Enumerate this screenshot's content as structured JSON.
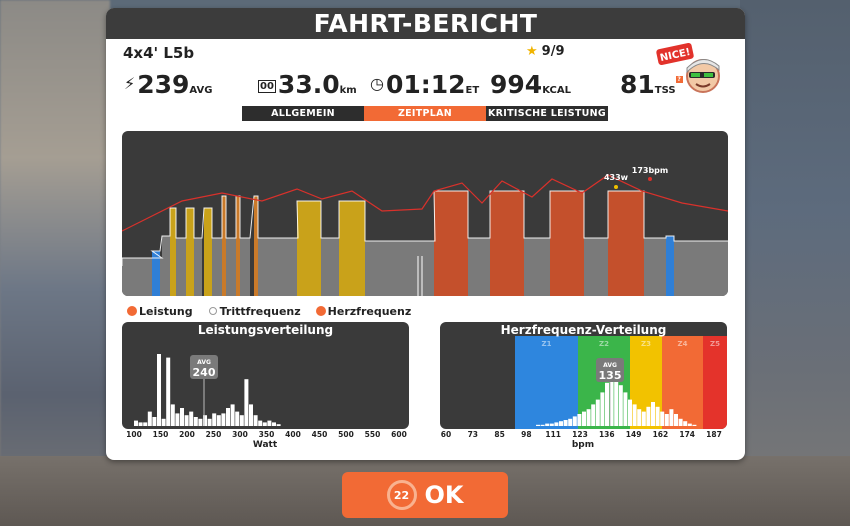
{
  "title": "FAHRT-BERICHT",
  "workout_name": "4x4' L5b",
  "stars": "9/9",
  "badge_text": "NICE!",
  "stats": {
    "power": {
      "value": "239",
      "unit": "AVG"
    },
    "distance": {
      "value": "33.0",
      "unit": "km"
    },
    "time": {
      "value": "01:12",
      "unit": "ET"
    },
    "energy": {
      "value": "994",
      "unit": "KCAL"
    },
    "tss": {
      "value": "81",
      "unit": "TSS"
    }
  },
  "tabs": [
    {
      "label": "ALLGEMEIN",
      "active": false
    },
    {
      "label": "ZEITPLAN",
      "active": true
    },
    {
      "label": "KRITISCHE LEISTUNG",
      "active": false
    }
  ],
  "timeline": {
    "peak_power_label": "433w",
    "peak_hr_label": "173bpm"
  },
  "legend": [
    {
      "label": "Leistung",
      "color": "#f26a35"
    },
    {
      "label": "Trittfrequenz",
      "color": "#ffffff"
    },
    {
      "label": "Herzfrequenz",
      "color": "#f26a35"
    }
  ],
  "power_hist": {
    "title": "Leistungsverteilung",
    "avg_label": "AVG",
    "avg_value": "240",
    "xlabel": "Watt",
    "ticks": [
      "100",
      "150",
      "200",
      "250",
      "300",
      "350",
      "400",
      "450",
      "500",
      "550",
      "600"
    ]
  },
  "hr_hist": {
    "title": "Herzfrequenz-Verteilung",
    "avg_label": "AVG",
    "avg_value": "135",
    "xlabel": "bpm",
    "zones": [
      "Z1",
      "Z2",
      "Z3",
      "Z4",
      "Z5"
    ],
    "ticks": [
      "60",
      "73",
      "85",
      "98",
      "111",
      "123",
      "136",
      "149",
      "162",
      "174",
      "187"
    ]
  },
  "ok_button": {
    "label": "OK",
    "badge": "22"
  },
  "colors": {
    "accent": "#f26a35",
    "dark": "#3a3a3a"
  }
}
